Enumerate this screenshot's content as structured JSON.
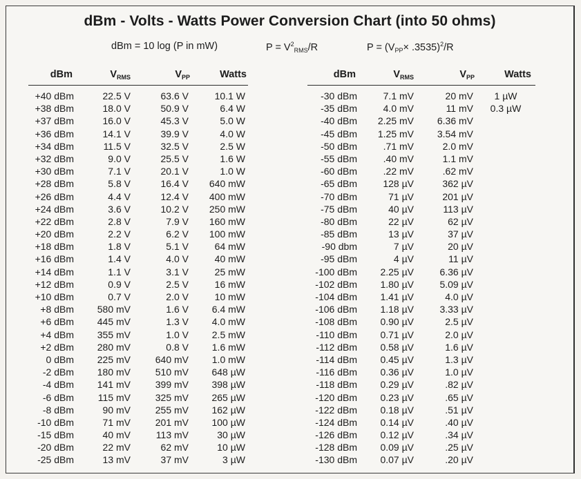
{
  "title": "dBm - Volts - Watts Power Conversion Chart (into 50 ohms)",
  "formulas": {
    "f1": "dBm = 10 log (P in mW)",
    "f2_a": "P = V",
    "f2_sup": "2",
    "f2_sub": "RMS",
    "f2_b": "/R",
    "f3_a": "P = (V",
    "f3_sub": "PP",
    "f3_b": "× .3535)",
    "f3_sup": "2",
    "f3_c": "/R"
  },
  "headers": {
    "dbm": "dBm",
    "vrms_v": "V",
    "vrms_sub": "RMS",
    "vpp_v": "V",
    "vpp_sub": "PP",
    "watts": "Watts"
  },
  "left_rows": [
    [
      "+40 dBm",
      "22.5 V",
      "63.6 V",
      "10.1 W"
    ],
    [
      "+38 dBm",
      "18.0 V",
      "50.9 V",
      "6.4 W"
    ],
    [
      "+37 dBm",
      "16.0 V",
      "45.3 V",
      "5.0 W"
    ],
    [
      "+36 dBm",
      "14.1 V",
      "39.9 V",
      "4.0 W"
    ],
    [
      "+34 dBm",
      "11.5 V",
      "32.5 V",
      "2.5 W"
    ],
    [
      "+32 dBm",
      "9.0 V",
      "25.5 V",
      "1.6 W"
    ],
    [
      "+30 dBm",
      "7.1 V",
      "20.1 V",
      "1.0 W"
    ],
    [
      "+28 dBm",
      "5.8 V",
      "16.4 V",
      "640 mW"
    ],
    [
      "+26 dBm",
      "4.4 V",
      "12.4 V",
      "400 mW"
    ],
    [
      "+24 dBm",
      "3.6 V",
      "10.2 V",
      "250 mW"
    ],
    [
      "+22 dBm",
      "2.8 V",
      "7.9 V",
      "160 mW"
    ],
    [
      "+20 dBm",
      "2.2 V",
      "6.2 V",
      "100 mW"
    ],
    [
      "+18 dBm",
      "1.8 V",
      "5.1 V",
      "64 mW"
    ],
    [
      "+16 dBm",
      "1.4 V",
      "4.0 V",
      "40 mW"
    ],
    [
      "+14 dBm",
      "1.1 V",
      "3.1 V",
      "25 mW"
    ],
    [
      "+12 dBm",
      "0.9 V",
      "2.5 V",
      "16 mW"
    ],
    [
      "+10 dBm",
      "0.7 V",
      "2.0 V",
      "10 mW"
    ],
    [
      "+8 dBm",
      "580 mV",
      "1.6 V",
      "6.4 mW"
    ],
    [
      "+6 dBm",
      "445 mV",
      "1.3 V",
      "4.0 mW"
    ],
    [
      "+4 dBm",
      "355 mV",
      "1.0 V",
      "2.5 mW"
    ],
    [
      "+2 dBm",
      "280 mV",
      "0.8 V",
      "1.6 mW"
    ],
    [
      "0 dBm",
      "225 mV",
      "640 mV",
      "1.0 mW"
    ],
    [
      "-2 dBm",
      "180 mV",
      "510 mV",
      "648 µW"
    ],
    [
      "-4 dBm",
      "141 mV",
      "399 mV",
      "398 µW"
    ],
    [
      "-6 dBm",
      "115 mV",
      "325 mV",
      "265 µW"
    ],
    [
      "-8 dBm",
      "90 mV",
      "255 mV",
      "162 µW"
    ],
    [
      "-10 dBm",
      "71 mV",
      "201 mV",
      "100 µW"
    ],
    [
      "-15 dBm",
      "40 mV",
      "113 mV",
      "30 µW"
    ],
    [
      "-20 dBm",
      "22 mV",
      "62 mV",
      "10 µW"
    ],
    [
      "-25 dBm",
      "13 mV",
      "37 mV",
      "3 µW"
    ]
  ],
  "right_rows": [
    [
      "-30 dBm",
      "7.1 mV",
      "20 mV",
      "1 µW"
    ],
    [
      "-35 dBm",
      "4.0 mV",
      "11 mV",
      "0.3 µW"
    ],
    [
      "-40 dBm",
      "2.25 mV",
      "6.36 mV",
      ""
    ],
    [
      "-45 dBm",
      "1.25 mV",
      "3.54 mV",
      ""
    ],
    [
      "-50 dBm",
      ".71 mV",
      "2.0 mV",
      ""
    ],
    [
      "-55 dBm",
      ".40 mV",
      "1.1 mV",
      ""
    ],
    [
      "-60 dBm",
      ".22 mV",
      ".62 mV",
      ""
    ],
    [
      "-65 dBm",
      "128 µV",
      "362 µV",
      ""
    ],
    [
      "-70 dBm",
      "71 µV",
      "201 µV",
      ""
    ],
    [
      "-75 dBm",
      "40 µV",
      "113 µV",
      ""
    ],
    [
      "-80 dBm",
      "22 µV",
      "62 µV",
      ""
    ],
    [
      "-85 dBm",
      "13 µV",
      "37 µV",
      ""
    ],
    [
      "-90 dbm",
      "7 µV",
      "20 µV",
      ""
    ],
    [
      "-95 dBm",
      "4 µV",
      "11 µV",
      ""
    ],
    [
      "-100 dBm",
      "2.25 µV",
      "6.36 µV",
      ""
    ],
    [
      "-102 dBm",
      "1.80 µV",
      "5.09 µV",
      ""
    ],
    [
      "-104 dBm",
      "1.41 µV",
      "4.0 µV",
      ""
    ],
    [
      "-106 dBm",
      "1.18 µV",
      "3.33 µV",
      ""
    ],
    [
      "-108 dBm",
      "0.90 µV",
      "2.5 µV",
      ""
    ],
    [
      "-110 dBm",
      "0.71 µV",
      "2.0 µV",
      ""
    ],
    [
      "-112 dBm",
      "0.58 µV",
      "1.6 µV",
      ""
    ],
    [
      "-114 dBm",
      "0.45 µV",
      "1.3 µV",
      ""
    ],
    [
      "-116 dBm",
      "0.36 µV",
      "1.0 µV",
      ""
    ],
    [
      "-118 dBm",
      "0.29 µV",
      ".82 µV",
      ""
    ],
    [
      "-120 dBm",
      "0.23 µV",
      ".65 µV",
      ""
    ],
    [
      "-122 dBm",
      "0.18 µV",
      ".51 µV",
      ""
    ],
    [
      "-124 dBm",
      "0.14 µV",
      ".40 µV",
      ""
    ],
    [
      "-126 dBm",
      "0.12 µV",
      ".34 µV",
      ""
    ],
    [
      "-128 dBm",
      "0.09 µV",
      ".25 µV",
      ""
    ],
    [
      "-130 dBm",
      "0.07 µV",
      ".20 µV",
      ""
    ]
  ]
}
